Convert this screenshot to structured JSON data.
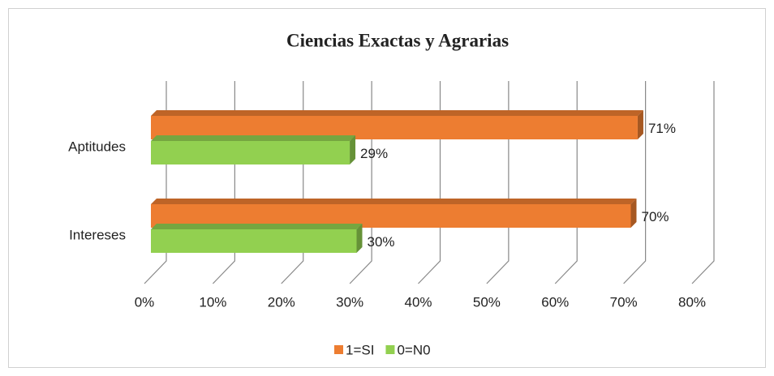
{
  "chart_data": {
    "type": "bar3d_horizontal",
    "title": "Ciencias Exactas y Agrarias",
    "categories": [
      "Aptitudes",
      "Intereses"
    ],
    "series": [
      {
        "name": "1=SI",
        "color": "#ED7D31",
        "values": [
          71,
          70
        ],
        "value_labels": [
          "71%",
          "70%"
        ]
      },
      {
        "name": "0=N0",
        "color": "#92D050",
        "values": [
          29,
          30
        ],
        "value_labels": [
          "29%",
          "30%"
        ]
      }
    ],
    "xlim": [
      0,
      80
    ],
    "xticks": [
      {
        "value": 0,
        "label": "0%"
      },
      {
        "value": 10,
        "label": "10%"
      },
      {
        "value": 20,
        "label": "20%"
      },
      {
        "value": 30,
        "label": "30%"
      },
      {
        "value": 40,
        "label": "40%"
      },
      {
        "value": 50,
        "label": "50%"
      },
      {
        "value": 60,
        "label": "60%"
      },
      {
        "value": 70,
        "label": "70%"
      },
      {
        "value": 80,
        "label": "80%"
      }
    ],
    "grid": true,
    "legend": "bottom"
  }
}
